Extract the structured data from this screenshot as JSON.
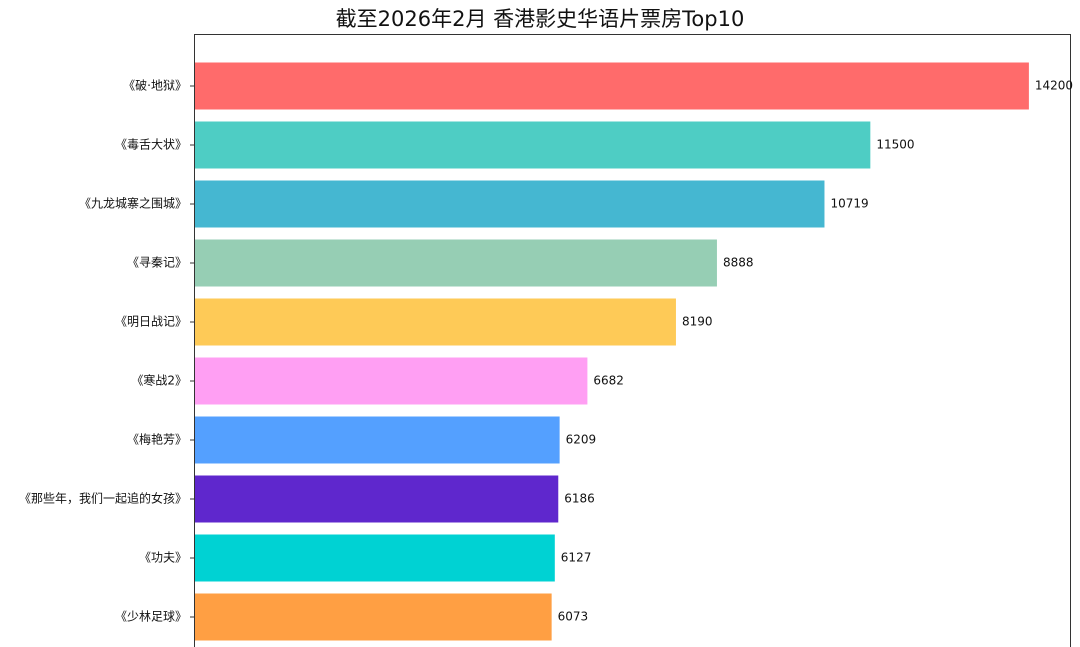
{
  "chart_data": {
    "type": "bar",
    "orientation": "horizontal",
    "title": "截至2026年2月 香港影史华语片票房Top10",
    "xlabel": "",
    "ylabel": "",
    "xlim": [
      0,
      14900
    ],
    "grid": false,
    "categories": [
      "《破·地狱》",
      "《毒舌大状》",
      "《九龙城寨之围城》",
      "《寻秦记》",
      "《明日战记》",
      "《寒战2》",
      "《梅艳芳》",
      "《那些年，我们一起追的女孩》",
      "《功夫》",
      "《少林足球》"
    ],
    "values": [
      14200,
      11500,
      10719,
      8888,
      8190,
      6682,
      6209,
      6186,
      6127,
      6073
    ],
    "colors": [
      "#ff6b6b",
      "#4ecdc4",
      "#45b7d1",
      "#96ceb4",
      "#feca57",
      "#ff9ff3",
      "#54a0ff",
      "#5f27cd",
      "#00d2d3",
      "#ff9f43"
    ]
  }
}
